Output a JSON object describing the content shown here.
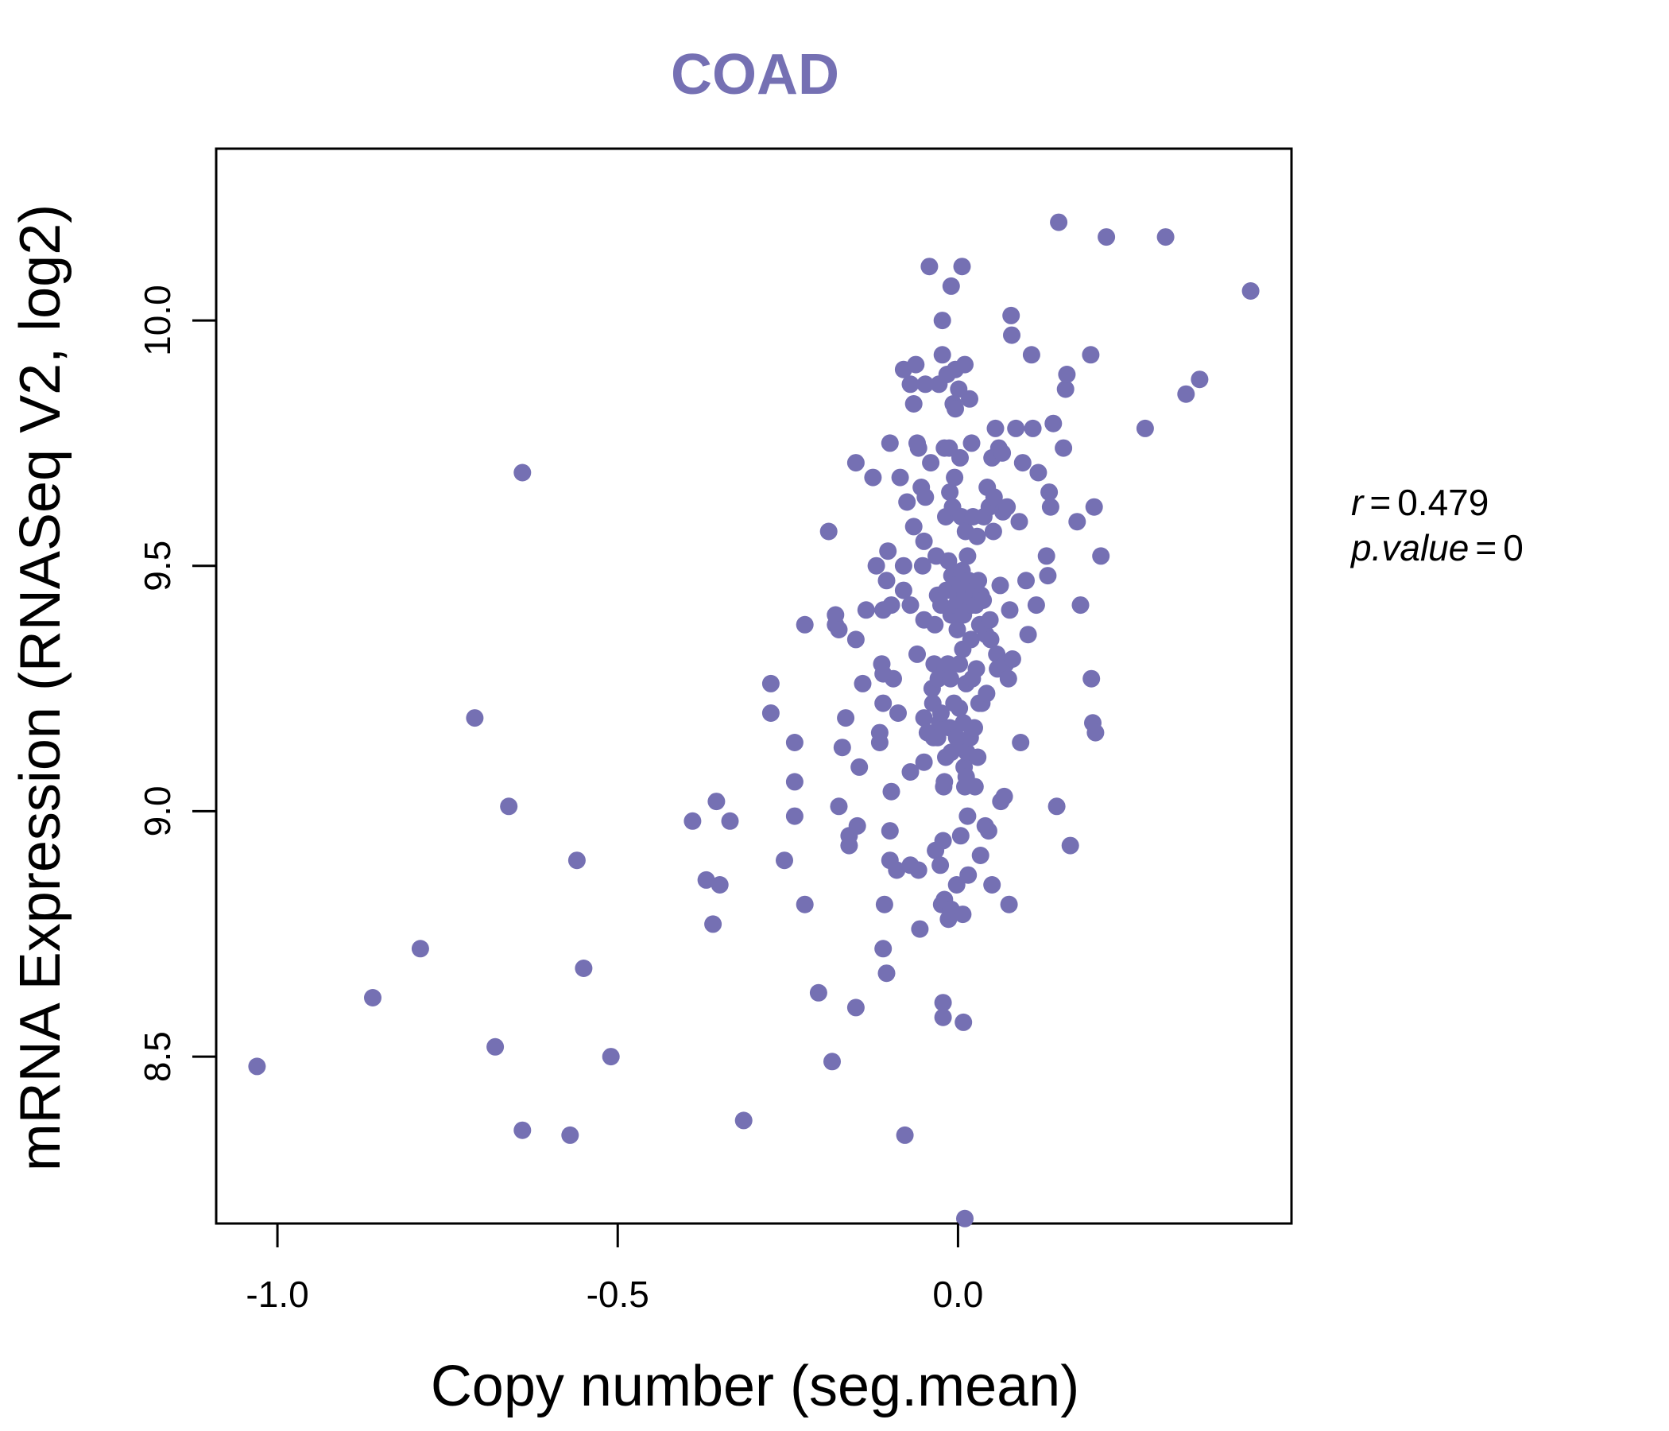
{
  "chart_data": {
    "type": "scatter",
    "title": "COAD",
    "xlabel": "Copy number (seg.mean)",
    "ylabel": "mRNA Expression (RNASeq V2, log2)",
    "xlim": [
      -1.09,
      0.49
    ],
    "ylim": [
      8.16,
      10.35
    ],
    "xticks": [
      -1.0,
      -0.5,
      0.0
    ],
    "xtick_labels": [
      "-1.0",
      "-0.5",
      "0.0"
    ],
    "yticks": [
      8.5,
      9.0,
      9.5,
      10.0
    ],
    "ytick_labels": [
      "8.5",
      "9.0",
      "9.5",
      "10.0"
    ],
    "point_color": "#7570b3",
    "title_color": "#7570b3",
    "points": [
      [
        -1.03,
        8.48
      ],
      [
        -0.86,
        8.62
      ],
      [
        -0.79,
        8.72
      ],
      [
        -0.71,
        9.19
      ],
      [
        -0.68,
        8.52
      ],
      [
        -0.66,
        9.01
      ],
      [
        -0.64,
        9.69
      ],
      [
        -0.64,
        8.35
      ],
      [
        -0.57,
        8.34
      ],
      [
        -0.56,
        8.9
      ],
      [
        -0.55,
        8.68
      ],
      [
        -0.51,
        8.5
      ],
      [
        -0.39,
        8.98
      ],
      [
        -0.37,
        8.86
      ],
      [
        -0.36,
        8.77
      ],
      [
        -0.355,
        9.02
      ],
      [
        -0.35,
        8.85
      ],
      [
        -0.335,
        8.98
      ],
      [
        -0.315,
        8.37
      ],
      [
        -0.275,
        9.26
      ],
      [
        -0.275,
        9.2
      ],
      [
        -0.255,
        8.9
      ],
      [
        -0.24,
        9.06
      ],
      [
        -0.24,
        8.99
      ],
      [
        -0.24,
        9.14
      ],
      [
        -0.225,
        9.38
      ],
      [
        -0.225,
        8.81
      ],
      [
        -0.205,
        8.63
      ],
      [
        -0.19,
        9.57
      ],
      [
        -0.185,
        8.49
      ],
      [
        -0.18,
        9.38
      ],
      [
        -0.18,
        9.4
      ],
      [
        -0.175,
        9.37
      ],
      [
        -0.175,
        9.01
      ],
      [
        -0.17,
        9.13
      ],
      [
        -0.165,
        9.19
      ],
      [
        -0.16,
        8.93
      ],
      [
        -0.16,
        8.95
      ],
      [
        -0.15,
        9.71
      ],
      [
        -0.15,
        9.35
      ],
      [
        -0.15,
        8.6
      ],
      [
        -0.148,
        8.97
      ],
      [
        -0.145,
        9.09
      ],
      [
        -0.14,
        9.26
      ],
      [
        -0.135,
        9.41
      ],
      [
        -0.125,
        9.68
      ],
      [
        -0.12,
        9.5
      ],
      [
        -0.115,
        9.16
      ],
      [
        -0.115,
        9.14
      ],
      [
        -0.112,
        9.3
      ],
      [
        -0.11,
        9.28
      ],
      [
        -0.11,
        9.41
      ],
      [
        -0.11,
        9.22
      ],
      [
        -0.11,
        8.72
      ],
      [
        -0.108,
        8.81
      ],
      [
        -0.105,
        8.67
      ],
      [
        -0.105,
        9.47
      ],
      [
        -0.103,
        9.53
      ],
      [
        -0.1,
        9.75
      ],
      [
        -0.1,
        8.96
      ],
      [
        -0.1,
        8.9
      ],
      [
        -0.098,
        9.42
      ],
      [
        -0.098,
        9.04
      ],
      [
        -0.095,
        9.27
      ],
      [
        -0.09,
        8.88
      ],
      [
        -0.088,
        9.2
      ],
      [
        -0.085,
        9.68
      ],
      [
        -0.08,
        9.9
      ],
      [
        -0.08,
        9.5
      ],
      [
        -0.08,
        9.45
      ],
      [
        -0.078,
        8.34
      ],
      [
        -0.075,
        9.63
      ],
      [
        -0.07,
        9.87
      ],
      [
        -0.07,
        9.42
      ],
      [
        -0.07,
        9.08
      ],
      [
        -0.07,
        8.89
      ],
      [
        -0.065,
        9.83
      ],
      [
        -0.065,
        9.58
      ],
      [
        -0.062,
        9.91
      ],
      [
        -0.06,
        9.75
      ],
      [
        -0.06,
        9.32
      ],
      [
        -0.058,
        9.74
      ],
      [
        -0.058,
        8.88
      ],
      [
        -0.056,
        8.76
      ],
      [
        -0.054,
        9.66
      ],
      [
        -0.052,
        9.5
      ],
      [
        -0.05,
        9.55
      ],
      [
        -0.05,
        9.19
      ],
      [
        -0.05,
        9.39
      ],
      [
        -0.05,
        9.1
      ],
      [
        -0.048,
        9.87
      ],
      [
        -0.048,
        9.64
      ],
      [
        -0.045,
        9.16
      ],
      [
        -0.042,
        10.11
      ],
      [
        -0.04,
        9.71
      ],
      [
        -0.038,
        9.25
      ],
      [
        -0.037,
        9.22
      ],
      [
        -0.036,
        9.15
      ],
      [
        -0.035,
        9.3
      ],
      [
        -0.034,
        9.38
      ],
      [
        -0.033,
        8.92
      ],
      [
        -0.032,
        9.52
      ],
      [
        -0.03,
        9.44
      ],
      [
        -0.03,
        9.15
      ],
      [
        -0.029,
        9.27
      ],
      [
        -0.028,
        9.87
      ],
      [
        -0.027,
        9.18
      ],
      [
        -0.026,
        8.89
      ],
      [
        -0.025,
        9.42
      ],
      [
        -0.025,
        9.2
      ],
      [
        -0.024,
        8.81
      ],
      [
        -0.023,
        9.93
      ],
      [
        -0.023,
        10.0
      ],
      [
        -0.022,
        8.61
      ],
      [
        -0.022,
        8.58
      ],
      [
        -0.022,
        8.94
      ],
      [
        -0.021,
        9.05
      ],
      [
        -0.02,
        9.74
      ],
      [
        -0.02,
        9.06
      ],
      [
        -0.02,
        8.82
      ],
      [
        -0.019,
        9.29
      ],
      [
        -0.018,
        9.11
      ],
      [
        -0.018,
        9.6
      ],
      [
        -0.017,
        9.45
      ],
      [
        -0.016,
        9.89
      ],
      [
        -0.015,
        9.3
      ],
      [
        -0.014,
        9.51
      ],
      [
        -0.014,
        8.78
      ],
      [
        -0.013,
        9.74
      ],
      [
        -0.012,
        9.65
      ],
      [
        -0.012,
        9.17
      ],
      [
        -0.011,
        9.27
      ],
      [
        -0.01,
        9.4
      ],
      [
        -0.01,
        9.12
      ],
      [
        -0.01,
        8.8
      ],
      [
        -0.01,
        10.07
      ],
      [
        -0.009,
        9.48
      ],
      [
        -0.008,
        9.62
      ],
      [
        -0.007,
        9.83
      ],
      [
        -0.006,
        9.46
      ],
      [
        -0.006,
        9.22
      ],
      [
        -0.005,
        9.68
      ],
      [
        -0.004,
        9.9
      ],
      [
        -0.004,
        9.82
      ],
      [
        -0.003,
        9.42
      ],
      [
        -0.002,
        9.15
      ],
      [
        -0.002,
        8.85
      ],
      [
        -0.001,
        9.37
      ],
      [
        0.0,
        9.43
      ],
      [
        0.001,
        9.86
      ],
      [
        0.002,
        9.3
      ],
      [
        0.002,
        9.21
      ],
      [
        0.003,
        9.72
      ],
      [
        0.004,
        9.46
      ],
      [
        0.004,
        8.95
      ],
      [
        0.005,
        9.6
      ],
      [
        0.005,
        9.14
      ],
      [
        0.006,
        9.49
      ],
      [
        0.006,
        10.11
      ],
      [
        0.007,
        9.33
      ],
      [
        0.007,
        8.79
      ],
      [
        0.008,
        9.4
      ],
      [
        0.008,
        9.18
      ],
      [
        0.008,
        8.57
      ],
      [
        0.009,
        9.09
      ],
      [
        0.01,
        9.91
      ],
      [
        0.01,
        9.44
      ],
      [
        0.01,
        9.05
      ],
      [
        0.01,
        8.17
      ],
      [
        0.011,
        9.57
      ],
      [
        0.012,
        9.26
      ],
      [
        0.012,
        9.07
      ],
      [
        0.013,
        9.12
      ],
      [
        0.014,
        9.52
      ],
      [
        0.014,
        8.99
      ],
      [
        0.015,
        8.87
      ],
      [
        0.016,
        9.47
      ],
      [
        0.017,
        9.84
      ],
      [
        0.018,
        9.15
      ],
      [
        0.019,
        9.35
      ],
      [
        0.02,
        9.75
      ],
      [
        0.02,
        9.42
      ],
      [
        0.021,
        9.27
      ],
      [
        0.022,
        9.6
      ],
      [
        0.023,
        9.45
      ],
      [
        0.024,
        9.17
      ],
      [
        0.025,
        9.05
      ],
      [
        0.026,
        9.42
      ],
      [
        0.027,
        9.29
      ],
      [
        0.028,
        9.56
      ],
      [
        0.029,
        9.11
      ],
      [
        0.03,
        9.47
      ],
      [
        0.031,
        9.22
      ],
      [
        0.032,
        9.38
      ],
      [
        0.033,
        8.91
      ],
      [
        0.034,
        9.44
      ],
      [
        0.035,
        9.22
      ],
      [
        0.037,
        9.43
      ],
      [
        0.038,
        9.6
      ],
      [
        0.04,
        8.97
      ],
      [
        0.041,
        9.36
      ],
      [
        0.042,
        9.24
      ],
      [
        0.043,
        9.66
      ],
      [
        0.045,
        8.96
      ],
      [
        0.046,
        9.62
      ],
      [
        0.047,
        9.39
      ],
      [
        0.048,
        9.35
      ],
      [
        0.05,
        9.72
      ],
      [
        0.05,
        8.85
      ],
      [
        0.052,
        9.57
      ],
      [
        0.053,
        9.64
      ],
      [
        0.055,
        9.78
      ],
      [
        0.057,
        9.32
      ],
      [
        0.058,
        9.29
      ],
      [
        0.06,
        9.74
      ],
      [
        0.062,
        9.46
      ],
      [
        0.063,
        9.02
      ],
      [
        0.065,
        9.73
      ],
      [
        0.066,
        9.61
      ],
      [
        0.068,
        9.03
      ],
      [
        0.07,
        9.3
      ],
      [
        0.072,
        9.62
      ],
      [
        0.074,
        9.27
      ],
      [
        0.075,
        8.81
      ],
      [
        0.076,
        9.41
      ],
      [
        0.078,
        10.01
      ],
      [
        0.079,
        9.97
      ],
      [
        0.08,
        9.31
      ],
      [
        0.085,
        9.78
      ],
      [
        0.09,
        9.59
      ],
      [
        0.092,
        9.14
      ],
      [
        0.095,
        9.71
      ],
      [
        0.1,
        9.47
      ],
      [
        0.103,
        9.36
      ],
      [
        0.108,
        9.93
      ],
      [
        0.11,
        9.78
      ],
      [
        0.115,
        9.42
      ],
      [
        0.118,
        9.69
      ],
      [
        0.13,
        9.52
      ],
      [
        0.132,
        9.48
      ],
      [
        0.134,
        9.65
      ],
      [
        0.136,
        9.62
      ],
      [
        0.14,
        9.79
      ],
      [
        0.145,
        9.01
      ],
      [
        0.148,
        10.2
      ],
      [
        0.155,
        9.74
      ],
      [
        0.158,
        9.86
      ],
      [
        0.16,
        9.89
      ],
      [
        0.165,
        8.93
      ],
      [
        0.175,
        9.59
      ],
      [
        0.18,
        9.42
      ],
      [
        0.195,
        9.93
      ],
      [
        0.196,
        9.27
      ],
      [
        0.198,
        9.18
      ],
      [
        0.2,
        9.62
      ],
      [
        0.202,
        9.16
      ],
      [
        0.21,
        9.52
      ],
      [
        0.218,
        10.17
      ],
      [
        0.275,
        9.78
      ],
      [
        0.305,
        10.17
      ],
      [
        0.335,
        9.85
      ],
      [
        0.355,
        9.88
      ],
      [
        0.43,
        10.06
      ]
    ]
  },
  "stats": {
    "r_label": "r",
    "r_value": "0.479",
    "p_label": "p.value",
    "p_value": "0"
  }
}
